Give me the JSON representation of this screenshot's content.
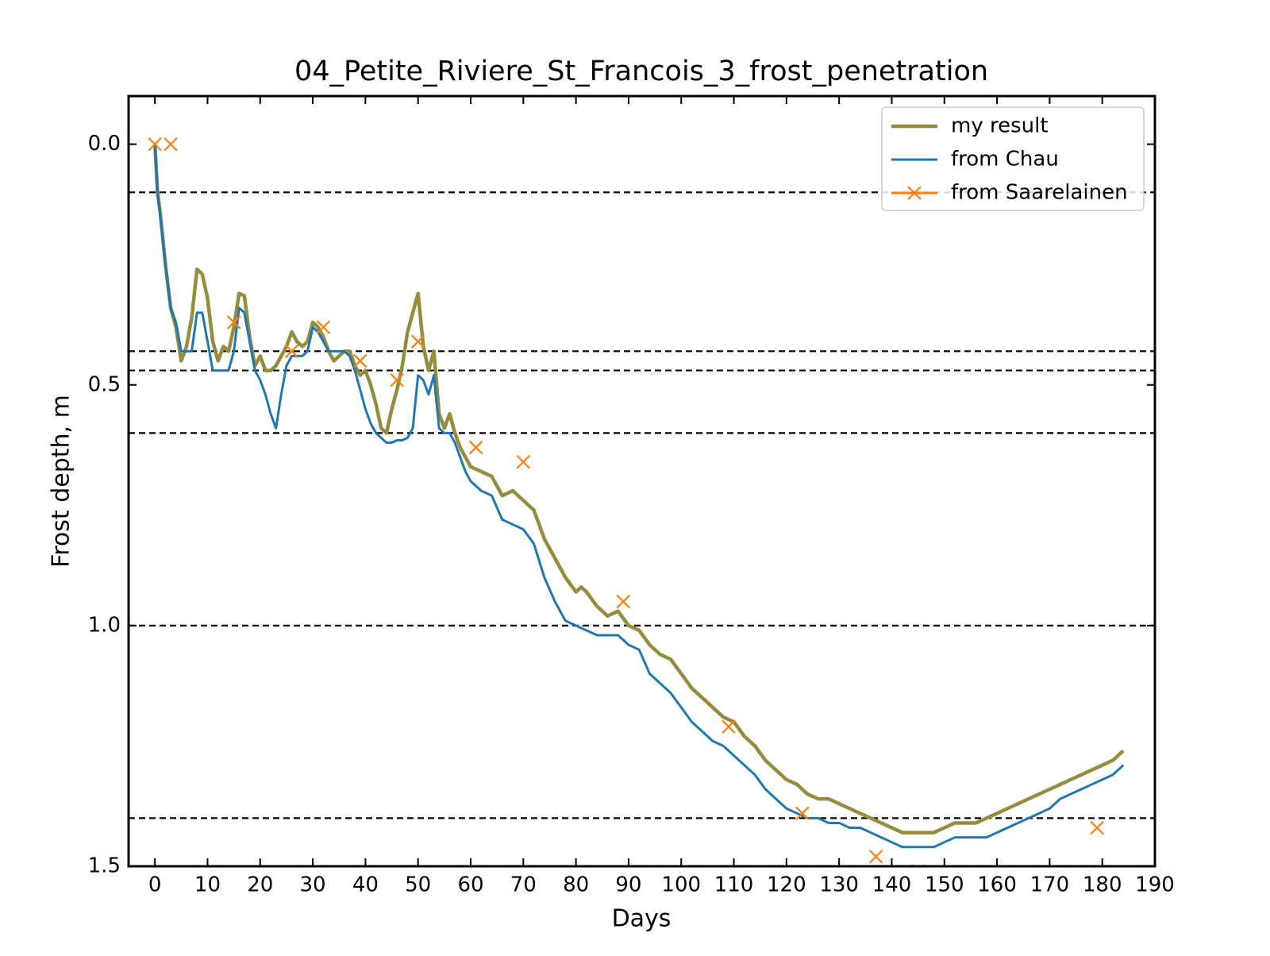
{
  "chart_data": {
    "type": "line",
    "title": "04_Petite_Riviere_St_Francois_3_frost_penetration",
    "x_label": "Days",
    "y_label": "Frost depth, m",
    "xlim": [
      -5,
      190
    ],
    "xticks": [
      0,
      10,
      20,
      30,
      40,
      50,
      60,
      70,
      80,
      90,
      100,
      110,
      120,
      130,
      140,
      150,
      160,
      170,
      180,
      190
    ],
    "ylim": [
      -0.1,
      1.5
    ],
    "y_inverted": true,
    "yticks": [
      {
        "value": 0,
        "label": "0.0"
      },
      0.5,
      {
        "value": 1,
        "label": "1.0"
      },
      1.5
    ],
    "hlines": [
      0.1,
      0.43,
      0.47,
      0.6,
      1.0,
      1.4
    ],
    "legend": "upper right",
    "series": [
      {
        "name": "my result",
        "color": "#958c3d",
        "style": "line",
        "x": [
          0,
          0.5,
          1,
          2,
          3,
          4,
          5,
          6,
          7,
          8,
          9,
          10,
          11,
          12,
          13,
          14,
          15,
          16,
          17,
          18,
          19,
          20,
          21,
          22,
          23,
          24,
          25,
          26,
          27,
          28,
          29,
          30,
          31,
          32,
          33,
          34,
          35,
          36,
          37,
          38,
          39,
          40,
          41,
          42,
          43,
          44,
          45,
          46,
          47,
          48,
          49,
          50,
          51,
          52,
          53,
          54,
          55,
          56,
          57,
          58,
          59,
          60,
          62,
          64,
          66,
          68,
          70,
          72,
          74,
          76,
          78,
          80,
          81,
          82,
          84,
          86,
          88,
          90,
          92,
          94,
          96,
          98,
          100,
          102,
          104,
          106,
          108,
          110,
          112,
          114,
          116,
          118,
          120,
          122,
          124,
          126,
          128,
          130,
          132,
          134,
          136,
          138,
          140,
          142,
          144,
          146,
          148,
          150,
          152,
          154,
          156,
          158,
          160,
          162,
          164,
          166,
          168,
          170,
          172,
          174,
          176,
          178,
          180,
          182,
          184
        ],
        "values": [
          0,
          0.1,
          0.14,
          0.25,
          0.34,
          0.38,
          0.45,
          0.42,
          0.36,
          0.26,
          0.27,
          0.32,
          0.41,
          0.45,
          0.42,
          0.43,
          0.38,
          0.31,
          0.315,
          0.4,
          0.46,
          0.44,
          0.47,
          0.47,
          0.46,
          0.44,
          0.42,
          0.39,
          0.41,
          0.42,
          0.41,
          0.37,
          0.38,
          0.4,
          0.43,
          0.45,
          0.44,
          0.43,
          0.43,
          0.46,
          0.48,
          0.47,
          0.5,
          0.54,
          0.59,
          0.6,
          0.55,
          0.51,
          0.46,
          0.39,
          0.35,
          0.31,
          0.42,
          0.47,
          0.43,
          0.56,
          0.59,
          0.56,
          0.6,
          0.63,
          0.65,
          0.67,
          0.68,
          0.69,
          0.73,
          0.72,
          0.74,
          0.76,
          0.82,
          0.86,
          0.9,
          0.93,
          0.92,
          0.93,
          0.96,
          0.98,
          0.97,
          1.0,
          1.01,
          1.04,
          1.06,
          1.07,
          1.1,
          1.13,
          1.15,
          1.17,
          1.19,
          1.2,
          1.23,
          1.25,
          1.28,
          1.3,
          1.32,
          1.33,
          1.35,
          1.36,
          1.36,
          1.37,
          1.38,
          1.39,
          1.4,
          1.41,
          1.42,
          1.43,
          1.43,
          1.43,
          1.43,
          1.42,
          1.41,
          1.41,
          1.41,
          1.4,
          1.39,
          1.38,
          1.37,
          1.36,
          1.35,
          1.34,
          1.33,
          1.32,
          1.31,
          1.3,
          1.29,
          1.28,
          1.26
        ]
      },
      {
        "name": "from Chau",
        "color": "#1f77b4",
        "style": "line",
        "x": [
          0,
          0.5,
          1,
          2,
          3,
          4,
          5,
          6,
          7,
          8,
          9,
          10,
          11,
          12,
          13,
          14,
          15,
          16,
          17,
          18,
          19,
          20,
          21,
          22,
          23,
          24,
          25,
          26,
          27,
          28,
          29,
          30,
          31,
          32,
          33,
          34,
          35,
          36,
          37,
          38,
          39,
          40,
          41,
          42,
          43,
          44,
          45,
          46,
          47,
          48,
          49,
          50,
          51,
          52,
          53,
          54,
          55,
          56,
          57,
          58,
          59,
          60,
          62,
          64,
          66,
          68,
          70,
          72,
          74,
          76,
          78,
          80,
          82,
          84,
          86,
          88,
          90,
          92,
          94,
          96,
          98,
          100,
          102,
          104,
          106,
          108,
          110,
          112,
          114,
          116,
          118,
          120,
          122,
          124,
          126,
          128,
          130,
          132,
          134,
          136,
          138,
          140,
          142,
          144,
          146,
          148,
          150,
          152,
          154,
          156,
          158,
          160,
          162,
          164,
          166,
          168,
          170,
          172,
          174,
          176,
          178,
          180,
          182,
          184
        ],
        "values": [
          0,
          0.1,
          0.15,
          0.25,
          0.34,
          0.37,
          0.43,
          0.43,
          0.43,
          0.35,
          0.35,
          0.41,
          0.47,
          0.47,
          0.47,
          0.47,
          0.43,
          0.34,
          0.35,
          0.41,
          0.47,
          0.49,
          0.52,
          0.56,
          0.59,
          0.52,
          0.46,
          0.44,
          0.44,
          0.44,
          0.43,
          0.38,
          0.39,
          0.41,
          0.43,
          0.43,
          0.43,
          0.43,
          0.44,
          0.47,
          0.51,
          0.55,
          0.58,
          0.6,
          0.61,
          0.62,
          0.62,
          0.615,
          0.615,
          0.61,
          0.59,
          0.48,
          0.49,
          0.52,
          0.48,
          0.59,
          0.6,
          0.6,
          0.62,
          0.65,
          0.68,
          0.7,
          0.72,
          0.73,
          0.78,
          0.79,
          0.8,
          0.83,
          0.9,
          0.95,
          0.99,
          1.0,
          1.01,
          1.02,
          1.02,
          1.02,
          1.04,
          1.05,
          1.1,
          1.12,
          1.14,
          1.17,
          1.2,
          1.22,
          1.24,
          1.25,
          1.27,
          1.29,
          1.31,
          1.34,
          1.36,
          1.38,
          1.39,
          1.4,
          1.4,
          1.41,
          1.41,
          1.42,
          1.42,
          1.43,
          1.44,
          1.45,
          1.46,
          1.46,
          1.46,
          1.46,
          1.45,
          1.44,
          1.44,
          1.44,
          1.44,
          1.43,
          1.42,
          1.41,
          1.4,
          1.39,
          1.38,
          1.36,
          1.35,
          1.34,
          1.33,
          1.32,
          1.31,
          1.29
        ]
      },
      {
        "name": "from Saarelainen",
        "color": "#ff7f0e",
        "style": "marker",
        "x": [
          0,
          3,
          15,
          26,
          32,
          39,
          46,
          50,
          61,
          70,
          89,
          109,
          123,
          137,
          145,
          179
        ],
        "values": [
          0,
          0,
          0.37,
          0.43,
          0.38,
          0.45,
          0.49,
          0.41,
          0.63,
          0.66,
          0.95,
          1.21,
          1.39,
          1.48,
          1.51,
          1.42
        ]
      }
    ]
  }
}
